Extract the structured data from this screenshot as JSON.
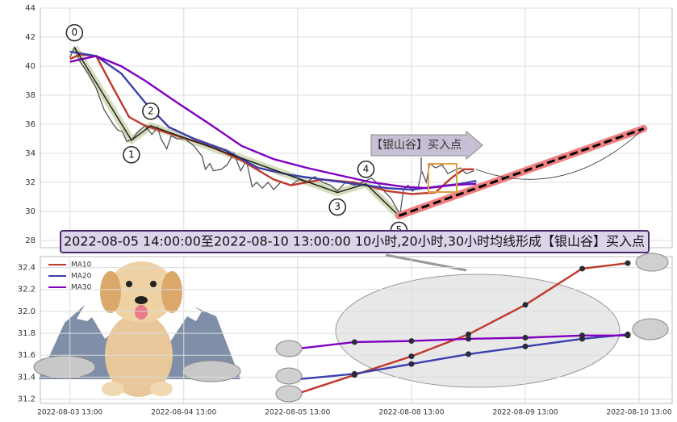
{
  "chart_data": [
    {
      "type": "line",
      "ylim": [
        27.5,
        44
      ],
      "xlim": [
        -0.26,
        5.29
      ],
      "yticks": [
        28,
        30,
        32,
        34,
        36,
        38,
        40,
        42,
        44
      ],
      "grid": true,
      "series": [
        {
          "color": "#555555",
          "x": [
            0,
            0.04,
            0.09,
            0.16,
            0.23,
            0.3,
            0.38,
            0.42,
            0.46,
            0.5,
            0.55,
            0.6,
            0.66,
            0.72,
            0.77,
            0.8,
            0.85,
            0.89,
            0.94,
            1.01,
            1.09,
            1.16,
            1.19,
            1.23,
            1.26,
            1.33,
            1.38,
            1.44,
            1.5,
            1.55,
            1.6,
            1.64,
            1.69,
            1.74,
            1.79,
            1.85,
            1.94,
            2.01,
            2.08,
            2.15,
            2.22,
            2.29,
            2.35,
            2.42,
            2.5,
            2.57,
            2.65,
            2.72,
            2.77,
            2.82,
            2.87,
            2.9,
            2.93,
            2.97,
            3.01,
            3.06,
            3.09,
            3.13,
            3.16,
            3.21,
            3.27,
            3.32,
            3.37,
            3.43,
            3.48,
            3.55
          ],
          "values": [
            40.6,
            41.3,
            40.3,
            39.5,
            38.5,
            37.0,
            36.0,
            35.6,
            35.5,
            34.8,
            35.0,
            35.5,
            35.9,
            35.3,
            35.8,
            35.0,
            34.3,
            35.2,
            35.0,
            35.0,
            34.5,
            33.8,
            32.9,
            33.3,
            32.8,
            32.9,
            33.2,
            34.0,
            32.8,
            33.5,
            31.7,
            32.0,
            31.6,
            32.0,
            31.5,
            32.0,
            31.8,
            32.2,
            32.0,
            32.4,
            32.0,
            31.8,
            31.4,
            32.0,
            31.8,
            32.0,
            32.3,
            31.8,
            31.3,
            30.9,
            30.2,
            29.8,
            31.5,
            31.8,
            31.4,
            31.7,
            32.8,
            32.0,
            33.3,
            33.0,
            33.2,
            32.6,
            32.8,
            33.0,
            32.6,
            32.8
          ]
        },
        {
          "color": "#c0392b",
          "x": [
            0,
            0.09,
            0.23,
            0.38,
            0.52,
            0.66,
            0.94,
            1.23,
            1.51,
            1.79,
            1.94,
            2.22,
            2.5,
            2.79,
            3.0,
            3.21,
            3.35,
            3.46,
            3.55
          ],
          "values": [
            40.5,
            40.8,
            40.7,
            38.5,
            36.5,
            35.9,
            35.2,
            34.5,
            33.5,
            32.2,
            31.8,
            32.2,
            32.0,
            31.4,
            31.2,
            31.3,
            32.3,
            32.9,
            32.9
          ]
        },
        {
          "color": "#3a3fb0",
          "x": [
            0,
            0.23,
            0.45,
            0.66,
            0.87,
            1.09,
            1.37,
            1.65,
            1.94,
            2.22,
            2.5,
            2.79,
            3.0,
            3.21,
            3.43,
            3.57
          ],
          "values": [
            41.0,
            40.7,
            39.5,
            37.5,
            35.8,
            35.0,
            34.2,
            33.0,
            32.5,
            32.2,
            31.9,
            31.6,
            31.5,
            31.7,
            31.9,
            32.1
          ]
        },
        {
          "color": "#8000c0",
          "x": [
            0,
            0.23,
            0.45,
            0.66,
            0.94,
            1.23,
            1.51,
            1.79,
            2.08,
            2.36,
            2.65,
            2.93,
            3.14,
            3.35,
            3.57
          ],
          "values": [
            40.3,
            40.7,
            40.0,
            39.0,
            37.5,
            36.0,
            34.5,
            33.6,
            33.0,
            32.5,
            32.0,
            31.7,
            31.6,
            31.8,
            31.9
          ]
        }
      ],
      "pivots": {
        "labels": [
          "0",
          "1",
          "2",
          "3",
          "4",
          "5"
        ],
        "x": [
          0.04,
          0.54,
          0.71,
          2.35,
          2.6,
          2.89
        ],
        "values": [
          41.3,
          34.9,
          35.9,
          31.3,
          31.9,
          29.7
        ],
        "color": "#222222"
      },
      "trend": {
        "x": [
          2.89,
          5.04
        ],
        "values": [
          29.7,
          35.7
        ],
        "color": "#000000"
      },
      "annotation": "【银山谷】买入点",
      "banner": "2022-08-05 14:00:00至2022-08-10 13:00:00 10小时,20小时,30小时均线形成【银山谷】买入点"
    },
    {
      "type": "line",
      "ylim": [
        31.16,
        32.5
      ],
      "xlim": [
        -0.26,
        5.29
      ],
      "yticks": [
        31.2,
        31.4,
        31.6,
        31.8,
        {
          "value": 32,
          "label": "32.0"
        },
        32.2,
        32.4
      ],
      "xticks": [
        {
          "value": 0,
          "label": "2022-08-03 13:00"
        },
        {
          "value": 1,
          "label": "2022-08-04 13:00"
        },
        {
          "value": 2,
          "label": "2022-08-05 13:00"
        },
        {
          "value": 3,
          "label": "2022-08-08 13:00"
        },
        {
          "value": 4,
          "label": "2022-08-09 13:00"
        },
        {
          "value": 5,
          "label": "2022-08-10 13:00"
        }
      ],
      "grid": true,
      "legend": "upper left",
      "x": [
        2.0,
        2.5,
        3.0,
        3.5,
        4.0,
        4.5,
        4.9
      ],
      "series": [
        {
          "name": "MA10",
          "color": "#c0392b",
          "values": [
            31.25,
            31.42,
            31.59,
            31.79,
            32.06,
            32.39,
            32.44
          ]
        },
        {
          "name": "MA20",
          "color": "#3a3fb0",
          "values": [
            31.38,
            31.43,
            31.52,
            31.61,
            31.68,
            31.75,
            31.79
          ]
        },
        {
          "name": "MA30",
          "color": "#8000c0",
          "values": [
            31.66,
            31.72,
            31.73,
            31.75,
            31.76,
            31.78,
            31.78
          ]
        }
      ]
    }
  ]
}
